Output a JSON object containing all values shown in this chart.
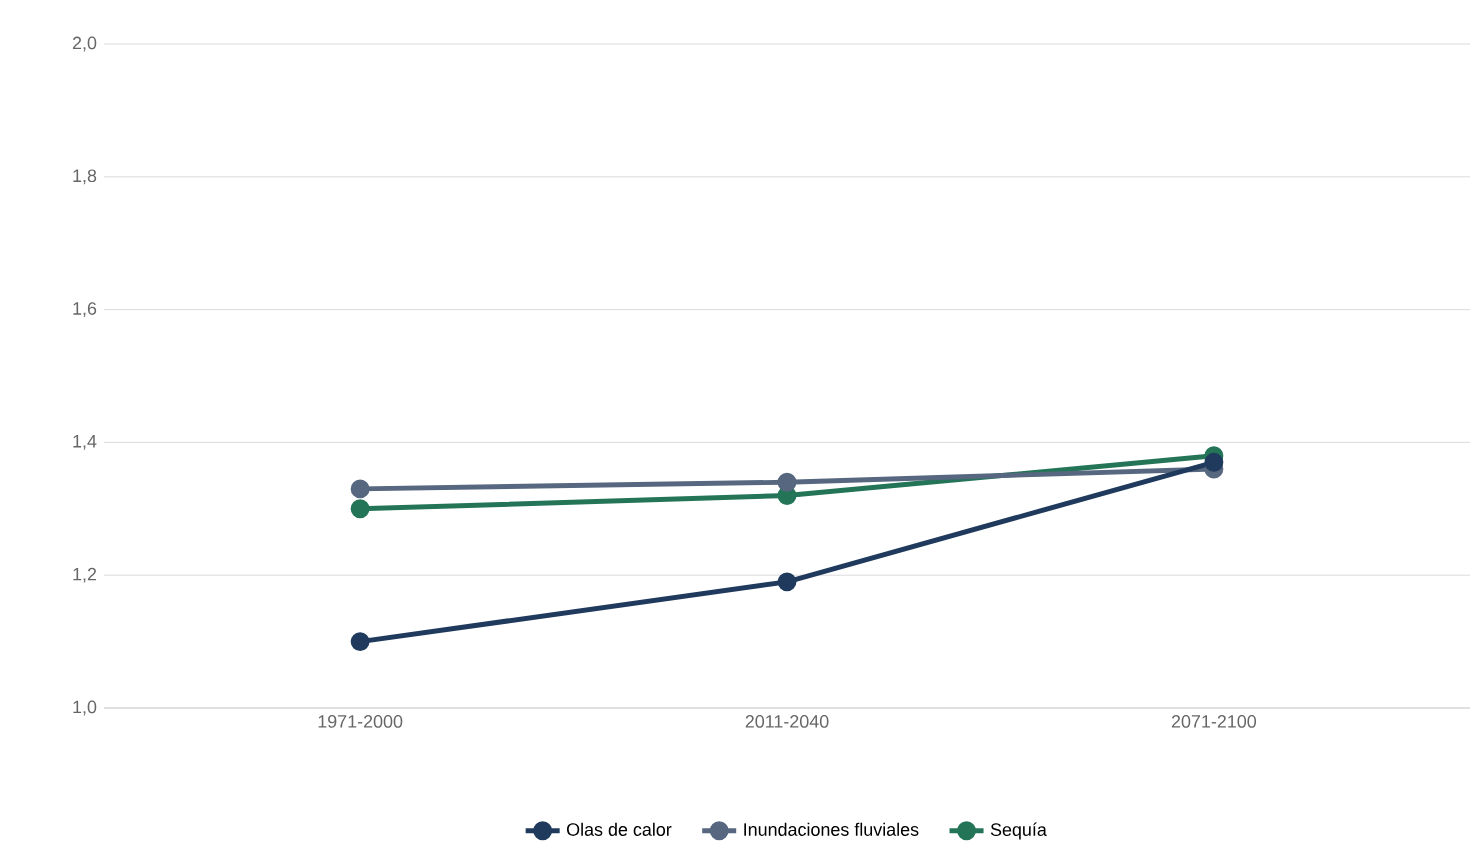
{
  "chart_data": {
    "type": "line",
    "categories": [
      "1971-2000",
      "2011-2040",
      "2071-2100"
    ],
    "series": [
      {
        "name": "Olas de calor",
        "color": "#1f3a5c",
        "values": [
          1.1,
          1.19,
          1.37
        ]
      },
      {
        "name": "Inundaciones fluviales",
        "color": "#56677f",
        "values": [
          1.33,
          1.34,
          1.36
        ]
      },
      {
        "name": "Sequía",
        "color": "#247558",
        "values": [
          1.3,
          1.32,
          1.38
        ]
      }
    ],
    "ylim": [
      1.0,
      2.0
    ],
    "yticks": [
      {
        "value": 1.0,
        "label": "1,0"
      },
      {
        "value": 1.2,
        "label": "1,2"
      },
      {
        "value": 1.4,
        "label": "1,4"
      },
      {
        "value": 1.6,
        "label": "1,6"
      },
      {
        "value": 1.8,
        "label": "1,8"
      },
      {
        "value": 2.0,
        "label": "2,0"
      }
    ],
    "grid": "y",
    "legend": "bottom",
    "marker": "circle",
    "line_style": "solid"
  }
}
